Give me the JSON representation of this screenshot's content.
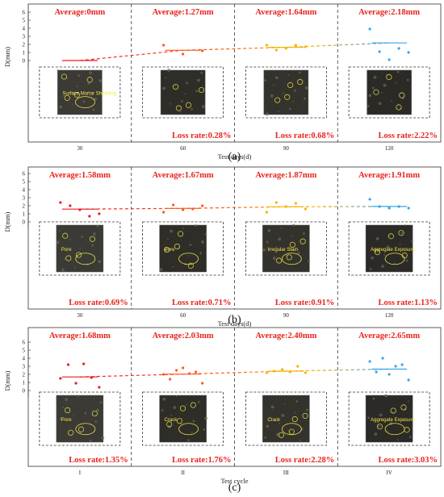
{
  "colors": {
    "series": [
      "#ec1c24",
      "#ff5a1f",
      "#f6b500",
      "#3aa4e6"
    ],
    "accent_text": "#e8231f",
    "frame": "#333333"
  },
  "chart_data": [
    {
      "type": "scatter",
      "panel_label": "(a)",
      "xlabel": "Test days(d)",
      "ylabel": "D(mm)",
      "ylim": [
        0,
        6
      ],
      "yticks": [
        1,
        2,
        3,
        4,
        5,
        6
      ],
      "categories": [
        "30",
        "60",
        "90",
        "120"
      ],
      "averages": [
        0,
        1.27,
        1.64,
        2.18
      ],
      "average_labels": [
        "Average:0mm",
        "Average:1.27mm",
        "Average:1.64mm",
        "Average:2.18mm"
      ],
      "loss_labels": [
        "",
        "Loss rate:0.28%",
        "Loss rate:0.68%",
        "Loss rate:2.22%"
      ],
      "points": [
        [],
        [
          1.9,
          0.8,
          1.2
        ],
        [
          1.9,
          1.3,
          1.5,
          1.9,
          1.7
        ],
        [
          3.9,
          1.1,
          0.1,
          1.5,
          1.0
        ]
      ],
      "photo_labels": [
        "Surface Mortar Shedding",
        "",
        "",
        ""
      ]
    },
    {
      "type": "scatter",
      "panel_label": "(b)",
      "xlabel": "Test days(d)",
      "ylabel": "D(mm)",
      "ylim": [
        0,
        6
      ],
      "yticks": [
        1,
        2,
        3,
        4,
        5,
        6
      ],
      "categories": [
        "30",
        "60",
        "90",
        "120"
      ],
      "averages": [
        1.58,
        1.67,
        1.87,
        1.91
      ],
      "average_labels": [
        "Average:1.58mm",
        "Average:1.67mm",
        "Average:1.87mm",
        "Average:1.91mm"
      ],
      "loss_labels": [
        "Loss rate:0.69%",
        "Loss rate:0.71%",
        "Loss rate:0.91%",
        "Loss rate:1.13%"
      ],
      "points": [
        [
          2.4,
          2.0,
          1.5,
          0.7,
          1.0
        ],
        [
          1.2,
          2.1,
          1.5,
          1.6,
          2.0
        ],
        [
          1.2,
          2.4,
          1.9,
          2.3,
          1.6
        ],
        [
          2.8,
          1.9,
          1.7,
          1.9,
          1.7
        ]
      ],
      "photo_labels": [
        "Pore",
        "Pore",
        "Irregular Stain",
        "Aggregate Exposure"
      ]
    },
    {
      "type": "scatter",
      "panel_label": "(c)",
      "xlabel": "Test cycle",
      "ylabel": "D(mm)",
      "ylim": [
        0,
        6
      ],
      "yticks": [
        1,
        2,
        3,
        4,
        5,
        6
      ],
      "categories": [
        "I",
        "II",
        "III",
        "IV"
      ],
      "averages": [
        1.68,
        2.03,
        2.4,
        2.65
      ],
      "average_labels": [
        "Average:1.68mm",
        "Average:2.03mm",
        "Average:2.40mm",
        "Average:2.65mm"
      ],
      "loss_labels": [
        "Loss rate:1.35%",
        "Loss rate:1.76%",
        "Loss rate:2.28%",
        "Loss rate:3.03%"
      ],
      "points": [
        [
          1.5,
          3.2,
          0.9,
          3.3,
          1.6,
          0.4
        ],
        [
          2.0,
          1.4,
          2.5,
          2.8,
          2.1,
          2.3,
          0.9
        ],
        [
          2.2,
          2.4,
          2.6,
          2.3,
          3.0,
          2.2
        ],
        [
          3.6,
          2.3,
          4.0,
          2.0,
          3.0,
          3.2,
          1.3
        ]
      ],
      "photo_labels": [
        "Pore",
        "Crack",
        "Crack",
        "Aggregate Exposure"
      ]
    }
  ]
}
